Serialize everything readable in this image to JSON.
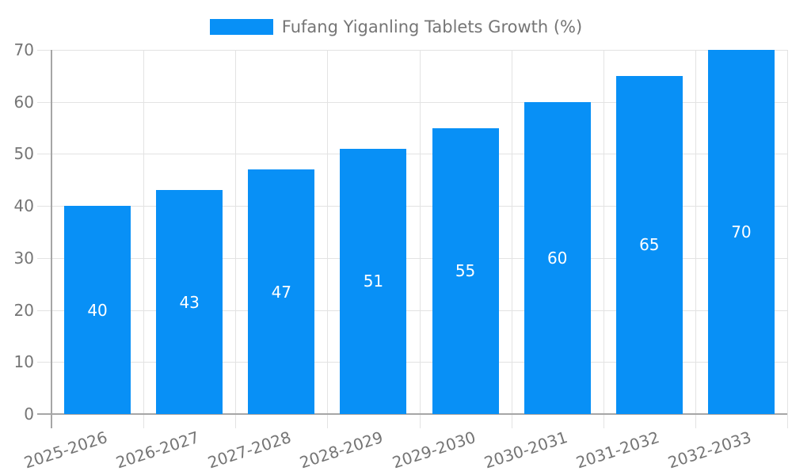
{
  "colors": {
    "bar": "#0890f6",
    "grid": "#e3e3e3",
    "axis": "#a6a6a6",
    "text": "#757575",
    "bar_label": "#ffffff",
    "background": "#ffffff"
  },
  "chart_data": {
    "type": "bar",
    "title": "",
    "legend": "Fufang Yiganling Tablets Growth (%)",
    "legend_position": "top-center",
    "categories": [
      "2025-2026",
      "2026-2027",
      "2027-2028",
      "2028-2029",
      "2029-2030",
      "2030-2031",
      "2031-2032",
      "2032-2033"
    ],
    "values": [
      40,
      43,
      47,
      51,
      55,
      60,
      65,
      70
    ],
    "xlabel": "",
    "ylabel": "",
    "ylim": [
      0,
      70
    ],
    "yticks": [
      0,
      10,
      20,
      30,
      40,
      50,
      60,
      70
    ],
    "grid": true,
    "value_labels_position": "inside-center",
    "x_tick_label_rotation_deg": -18
  }
}
